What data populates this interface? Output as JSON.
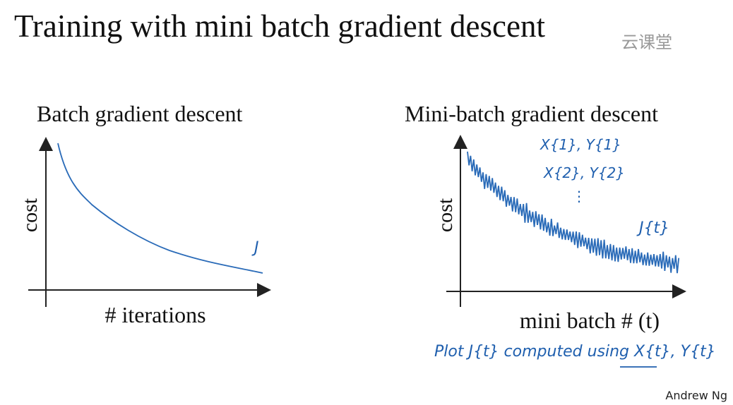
{
  "slide": {
    "title": "Training with mini batch gradient descent",
    "watermark": "云课堂",
    "left_panel": {
      "title": "Batch gradient descent",
      "y_label": "cost",
      "x_label": "# iterations",
      "curve_label": "J"
    },
    "right_panel": {
      "title": "Mini-batch gradient descent",
      "y_label": "cost",
      "x_label": "mini batch # (t)",
      "annotations": [
        "X{1}, Y{1}",
        "X{2}, Y{2}",
        "⋮",
        "J{t}"
      ]
    },
    "note": "Plot J{t} computed using X{t}, Y{t}",
    "author": "Andrew Ng"
  }
}
